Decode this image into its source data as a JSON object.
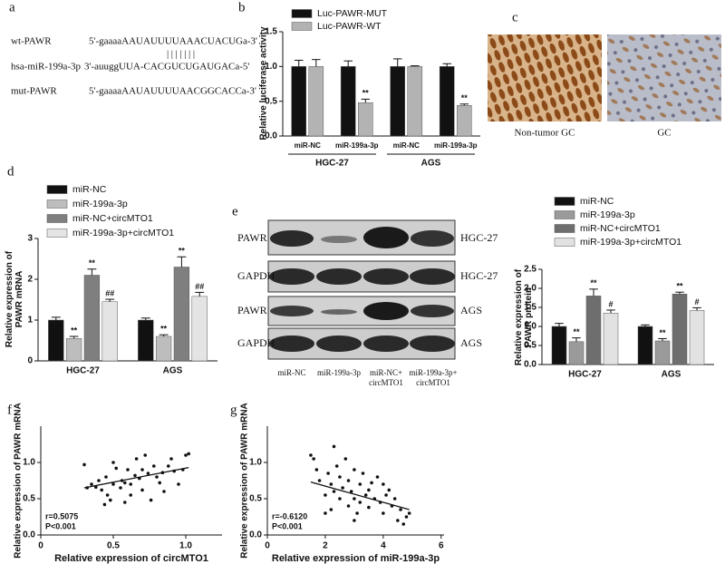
{
  "panel_labels": [
    "a",
    "b",
    "c",
    "d",
    "e",
    "f",
    "g"
  ],
  "sequences": {
    "rows": [
      {
        "name": "wt-PAWR",
        "seq": "5'-gaaaaAAUAUUUUAAACUACUGa-3'"
      },
      {
        "name": "hsa-miR-199a-3p",
        "seq": "3'-auuggUUA-CACGUCUGAUGACa-5'"
      },
      {
        "name": "mut-PAWR",
        "seq": "5'-gaaaaAAUAUUUUAACGGCACCa-3'"
      }
    ],
    "pairing": "|||||||"
  },
  "images": {
    "labels": [
      "Non-tumor GC",
      "GC"
    ]
  },
  "blot": {
    "rows": [
      {
        "protein": "PAWR",
        "cell": "HGC-27"
      },
      {
        "protein": "GAPDH",
        "cell": "HGC-27"
      },
      {
        "protein": "PAWR",
        "cell": "AGS"
      },
      {
        "protein": "GAPDH",
        "cell": "AGS"
      }
    ],
    "lanes": [
      [
        "miR-NC"
      ],
      [
        "miR-199a-3p"
      ],
      [
        "miR-NC+",
        "circMTO1"
      ],
      [
        "miR-199a-3p+",
        "circMTO1"
      ]
    ]
  },
  "chart_data": [
    {
      "type": "bar",
      "ylabel": "Relative luciferase activity",
      "categories": [
        "miR-NC",
        "miR-199a-3p",
        "miR-NC",
        "miR-199a-3p"
      ],
      "groups": [
        "HGC-27",
        "AGS"
      ],
      "ylim": [
        0,
        1.5
      ],
      "yticks": [
        {
          "value": 0,
          "label": "0.0"
        },
        {
          "value": 0.5,
          "label": "0.5"
        },
        {
          "value": 1,
          "label": "1.0"
        },
        {
          "value": 1.5,
          "label": "1.5"
        }
      ],
      "legend": "upper left",
      "series": [
        {
          "name": "Luc-PAWR-MUT",
          "color": "#111111",
          "values": [
            1.0,
            1.0,
            1.0,
            1.0
          ],
          "errors": [
            0.09,
            0.08,
            0.11,
            0.04
          ],
          "annotations": [
            null,
            null,
            null,
            null
          ]
        },
        {
          "name": "Luc-PAWR-WT",
          "color": "#b3b3b3",
          "values": [
            1.0,
            0.48,
            1.0,
            0.44
          ],
          "errors": [
            0.1,
            0.05,
            0.01,
            0.02
          ],
          "annotations": [
            null,
            "**",
            null,
            "**"
          ]
        }
      ]
    },
    {
      "type": "bar",
      "ylabel": [
        "Relative expression of",
        "PAWR mRNA"
      ],
      "categories": [
        "HGC-27",
        "AGS"
      ],
      "ylim": [
        0,
        3
      ],
      "yticks": [
        0,
        1,
        2,
        3
      ],
      "legend": "above",
      "series": [
        {
          "name": "miR-NC",
          "color": "#111111",
          "values": [
            1.0,
            1.0
          ],
          "errors": [
            0.07,
            0.05
          ],
          "annotations": [
            null,
            null
          ]
        },
        {
          "name": "miR-199a-3p",
          "color": "#bdbdbd",
          "values": [
            0.55,
            0.6
          ],
          "errors": [
            0.05,
            0.04
          ],
          "annotations": [
            "**",
            "**"
          ]
        },
        {
          "name": "miR-NC+circMTO1",
          "color": "#7f7f7f",
          "values": [
            2.1,
            2.3
          ],
          "errors": [
            0.15,
            0.25
          ],
          "annotations": [
            "**",
            "**"
          ]
        },
        {
          "name": "miR-199a-3p+circMTO1",
          "color": "#e4e4e4",
          "values": [
            1.45,
            1.58
          ],
          "errors": [
            0.06,
            0.1
          ],
          "annotations": [
            "##",
            "##"
          ]
        }
      ]
    },
    {
      "type": "bar",
      "ylabel": [
        "Relative expression of",
        "PAWR protein"
      ],
      "categories": [
        "HGC-27",
        "AGS"
      ],
      "ylim": [
        0,
        2.5
      ],
      "yticks": [
        {
          "value": 0,
          "label": "0.0"
        },
        {
          "value": 0.5,
          "label": "0.5"
        },
        {
          "value": 1,
          "label": "1.0"
        },
        {
          "value": 1.5,
          "label": "1.5"
        },
        {
          "value": 2,
          "label": "2.0"
        },
        {
          "value": 2.5,
          "label": "2.5"
        }
      ],
      "legend": "above",
      "series": [
        {
          "name": "miR-NC",
          "color": "#111111",
          "values": [
            1.0,
            1.0
          ],
          "errors": [
            0.08,
            0.04
          ],
          "annotations": [
            null,
            null
          ]
        },
        {
          "name": "miR-199a-3p",
          "color": "#9a9a9a",
          "values": [
            0.6,
            0.62
          ],
          "errors": [
            0.1,
            0.06
          ],
          "annotations": [
            "**",
            "**"
          ]
        },
        {
          "name": "miR-NC+circMTO1",
          "color": "#6e6e6e",
          "values": [
            1.8,
            1.85
          ],
          "errors": [
            0.18,
            0.05
          ],
          "annotations": [
            "**",
            "**"
          ]
        },
        {
          "name": "miR-199a-3p+circMTO1",
          "color": "#e2e2e2",
          "values": [
            1.35,
            1.42
          ],
          "errors": [
            0.08,
            0.07
          ],
          "annotations": [
            "#",
            "#"
          ]
        }
      ]
    },
    {
      "type": "scatter",
      "xlabel": "Relative expression of circMTO1",
      "ylabel": "Relative expression of PAWR mRNA",
      "xlim": [
        0,
        1.25
      ],
      "ylim": [
        0,
        1.5
      ],
      "xticks": [
        0,
        0.5,
        {
          "value": 1,
          "label": "1.0"
        }
      ],
      "yticks": [
        {
          "value": 0,
          "label": "0.0"
        },
        {
          "value": 0.5,
          "label": "0.5"
        },
        {
          "value": 1,
          "label": "1.0"
        }
      ],
      "annotations": [
        "r=0.5075",
        "P<0.001"
      ],
      "color": "#111111",
      "x": [
        0.3,
        0.32,
        0.35,
        0.38,
        0.4,
        0.42,
        0.45,
        0.46,
        0.48,
        0.5,
        0.52,
        0.55,
        0.56,
        0.58,
        0.6,
        0.62,
        0.62,
        0.65,
        0.66,
        0.68,
        0.7,
        0.7,
        0.72,
        0.74,
        0.76,
        0.78,
        0.8,
        0.82,
        0.84,
        0.85,
        0.88,
        0.9,
        0.92,
        0.95,
        0.98,
        1.0,
        1.02,
        0.58,
        0.5,
        0.44
      ],
      "y": [
        0.97,
        0.65,
        0.7,
        0.66,
        0.75,
        0.62,
        0.8,
        0.55,
        0.48,
        0.7,
        0.92,
        0.65,
        0.75,
        0.72,
        0.9,
        0.7,
        0.55,
        0.82,
        1.05,
        0.78,
        0.9,
        0.62,
        1.1,
        0.85,
        0.48,
        0.95,
        0.8,
        0.72,
        0.86,
        0.6,
        0.95,
        1.05,
        0.88,
        0.7,
        0.9,
        1.1,
        1.12,
        0.45,
        1.0,
        0.42
      ],
      "fit_line": {
        "x": [
          0.3,
          1.02
        ],
        "y": [
          0.65,
          0.93
        ]
      }
    },
    {
      "type": "scatter",
      "xlabel": "Relative expression of miR-199a-3p",
      "ylabel": "Relative expression of PAWR mRNA",
      "xlim": [
        0,
        6.1
      ],
      "ylim": [
        0,
        1.5
      ],
      "xticks": [
        0,
        2,
        4,
        6
      ],
      "yticks": [
        {
          "value": 0,
          "label": "0.0"
        },
        {
          "value": 0.5,
          "label": "0.5"
        },
        {
          "value": 1,
          "label": "1.0"
        }
      ],
      "annotations": [
        "r=-0.6120",
        "P<0.001"
      ],
      "color": "#111111",
      "x": [
        1.5,
        1.6,
        1.7,
        1.8,
        2.0,
        2.0,
        2.1,
        2.2,
        2.3,
        2.3,
        2.4,
        2.5,
        2.5,
        2.6,
        2.7,
        2.8,
        2.8,
        2.9,
        3.0,
        3.0,
        3.1,
        3.2,
        3.2,
        3.3,
        3.4,
        3.5,
        3.5,
        3.6,
        3.7,
        3.8,
        3.9,
        4.0,
        4.0,
        4.1,
        4.2,
        4.3,
        4.4,
        4.5,
        4.6,
        4.7,
        4.8,
        4.9,
        3.0,
        2.2
      ],
      "y": [
        1.1,
        1.05,
        0.9,
        0.75,
        0.55,
        0.3,
        0.85,
        0.7,
        0.6,
        1.22,
        0.95,
        0.5,
        0.8,
        0.65,
        1.05,
        0.4,
        0.75,
        0.6,
        0.9,
        0.5,
        0.3,
        0.7,
        0.45,
        0.85,
        0.55,
        0.62,
        0.38,
        0.72,
        0.5,
        0.8,
        0.45,
        0.7,
        0.3,
        0.55,
        0.62,
        0.4,
        0.5,
        0.2,
        0.35,
        0.15,
        0.25,
        0.3,
        0.2,
        0.35
      ],
      "fit_line": {
        "x": [
          1.5,
          4.9
        ],
        "y": [
          0.73,
          0.35
        ]
      }
    }
  ]
}
